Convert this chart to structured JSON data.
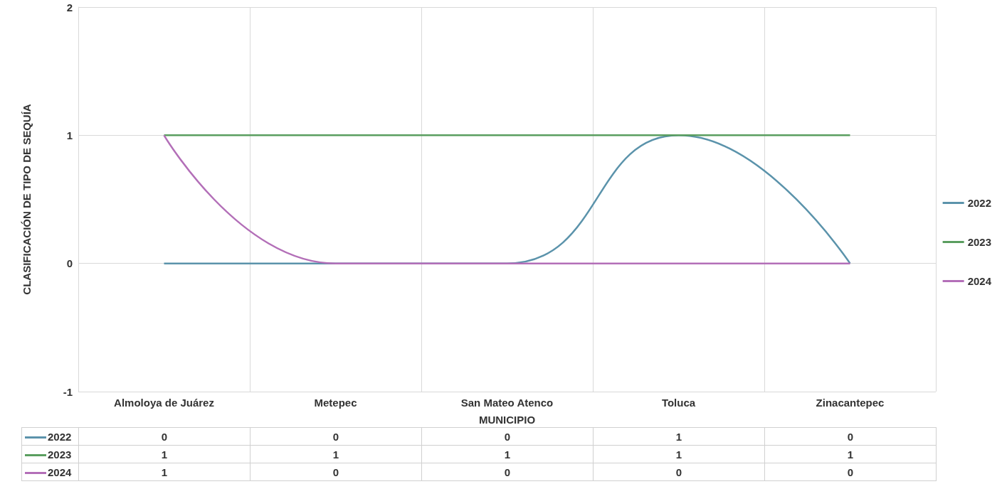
{
  "chart_data": {
    "type": "line",
    "xlabel": "MUNICIPIO",
    "ylabel": "CLASIFICACIÓN DE TIPO DE SEQUÍA",
    "categories": [
      "Almoloya de Juárez",
      "Metepec",
      "San Mateo Atenco",
      "Toluca",
      "Zinacantepec"
    ],
    "series": [
      {
        "name": "2022",
        "color": "#5b93ab",
        "values": [
          0,
          0,
          0,
          1,
          0
        ]
      },
      {
        "name": "2023",
        "color": "#5a9e5f",
        "values": [
          1,
          1,
          1,
          1,
          1
        ]
      },
      {
        "name": "2024",
        "color": "#b36fb8",
        "values": [
          1,
          0,
          0,
          0,
          0
        ]
      }
    ],
    "ylim": [
      -1,
      2
    ],
    "yticks": [
      -1,
      0,
      1,
      2
    ],
    "grid": true,
    "legend": "right",
    "marker": "none",
    "data_labels": true
  }
}
